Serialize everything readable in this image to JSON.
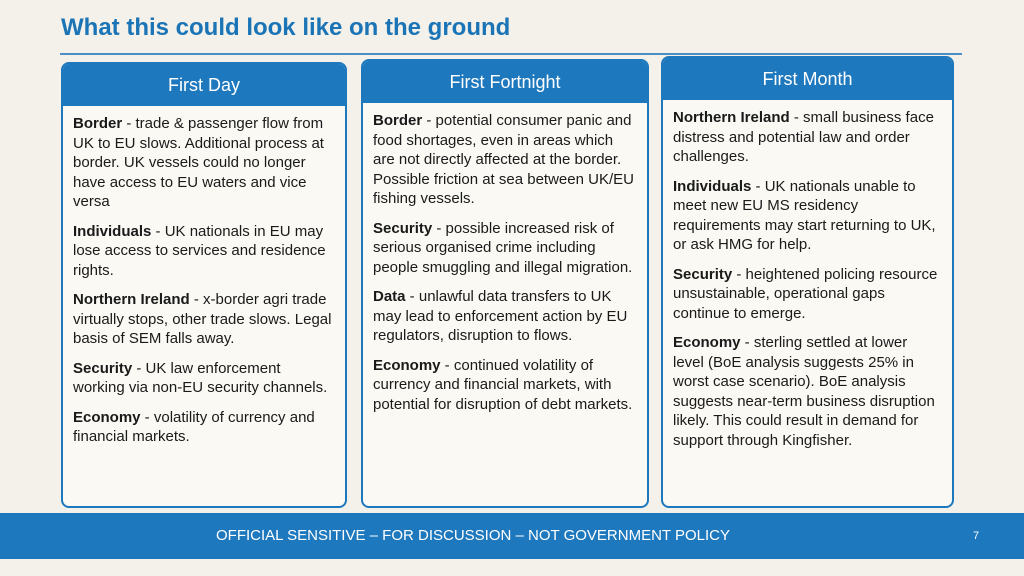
{
  "title": "What this could look like on the ground",
  "columns": [
    {
      "heading": "First Day",
      "items": [
        {
          "label": "Border",
          "text": " - trade & passenger flow from UK to EU slows. Additional process at border. UK vessels could no longer have access to EU waters and vice versa"
        },
        {
          "label": "Individuals",
          "text": " - UK nationals in EU may lose access to services and residence rights."
        },
        {
          "label": "Northern Ireland",
          "text": " - x-border agri trade virtually stops, other trade slows. Legal basis of SEM falls away."
        },
        {
          "label": "Security",
          "text": " - UK law enforcement working via non-EU security channels."
        },
        {
          "label": "Economy",
          "text": " - volatility of currency and financial markets."
        }
      ]
    },
    {
      "heading": "First Fortnight",
      "items": [
        {
          "label": "Border",
          "text": " - potential consumer panic and food shortages, even in areas which are not directly affected at the border. Possible friction at sea between UK/EU fishing vessels."
        },
        {
          "label": "Security",
          "text": " - possible increased risk of serious organised crime including people smuggling and illegal migration."
        },
        {
          "label": "Data",
          "text": " - unlawful data transfers to UK may lead to enforcement action by EU regulators, disruption to flows."
        },
        {
          "label": "Economy",
          "text": " - continued volatility of currency and financial markets, with potential for disruption of debt markets."
        }
      ]
    },
    {
      "heading": "First Month",
      "items": [
        {
          "label": "Northern Ireland",
          "text": " - small business face distress and potential law and order challenges."
        },
        {
          "label": "Individuals",
          "text": " - UK nationals unable to meet new EU MS residency requirements may start returning to UK, or ask HMG for help."
        },
        {
          "label": "Security",
          "text": " - heightened policing resource unsustainable, operational gaps continue to emerge."
        },
        {
          "label": "Economy",
          "text": " - sterling settled at lower level (BoE analysis suggests 25% in worst case scenario). BoE analysis suggests near-term business disruption likely. This could result in demand for support through Kingfisher."
        }
      ]
    }
  ],
  "footer": {
    "text": "OFFICIAL SENSITIVE –  FOR DISCUSSION – NOT GOVERNMENT POLICY",
    "page": "7"
  },
  "colors": {
    "accent": "#1e78be",
    "title": "#1a74b6"
  }
}
